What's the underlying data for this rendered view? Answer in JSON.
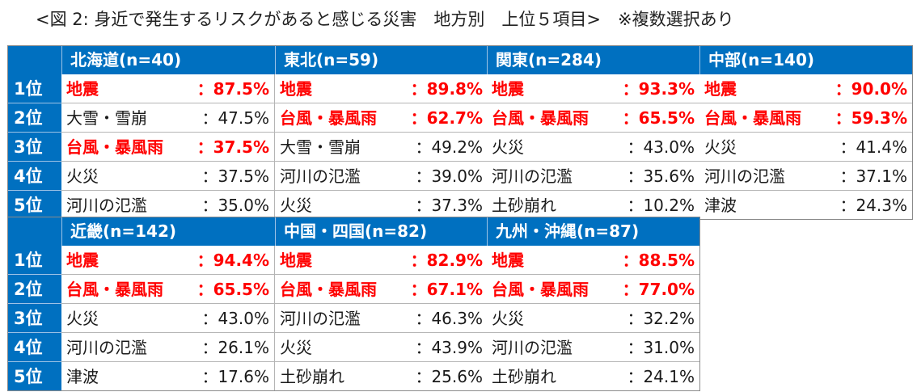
{
  "title": "<図 2: 身近で発生するリスクがあると感じる災害　地方別　上位５項目>　※複数選択あり",
  "ranks": [
    "1位",
    "2位",
    "3位",
    "4位",
    "5位"
  ],
  "colors": {
    "header_bg": "#0070c0",
    "header_text": "#ffffff",
    "highlight": "#ff0000",
    "body_text": "#1a1a1a"
  },
  "chart_data": {
    "type": "table",
    "regions": [
      {
        "header": "北海道(n=40)",
        "items": [
          {
            "name": "地震",
            "value": "：87.5%",
            "highlight": true
          },
          {
            "name": "大雪・雪崩",
            "value": "：47.5%",
            "highlight": false
          },
          {
            "name": "台風・暴風雨",
            "value": "：37.5%",
            "highlight": true
          },
          {
            "name": "火災",
            "value": "：37.5%",
            "highlight": false
          },
          {
            "name": "河川の氾濫",
            "value": "：35.0%",
            "highlight": false
          }
        ]
      },
      {
        "header": "東北(n=59)",
        "items": [
          {
            "name": "地震",
            "value": "：89.8%",
            "highlight": true
          },
          {
            "name": "台風・暴風雨",
            "value": "：62.7%",
            "highlight": true
          },
          {
            "name": "大雪・雪崩",
            "value": "：49.2%",
            "highlight": false
          },
          {
            "name": "河川の氾濫",
            "value": "：39.0%",
            "highlight": false
          },
          {
            "name": "火災",
            "value": "：37.3%",
            "highlight": false
          }
        ]
      },
      {
        "header": "関東(n=284)",
        "items": [
          {
            "name": "地震",
            "value": "：93.3%",
            "highlight": true
          },
          {
            "name": "台風・暴風雨",
            "value": "：65.5%",
            "highlight": true
          },
          {
            "name": "火災",
            "value": "：43.0%",
            "highlight": false
          },
          {
            "name": "河川の氾濫",
            "value": "：35.6%",
            "highlight": false
          },
          {
            "name": "土砂崩れ",
            "value": "：10.2%",
            "highlight": false
          }
        ]
      },
      {
        "header": "中部(n=140)",
        "items": [
          {
            "name": "地震",
            "value": "：90.0%",
            "highlight": true
          },
          {
            "name": "台風・暴風雨",
            "value": "：59.3%",
            "highlight": true
          },
          {
            "name": "火災",
            "value": "：41.4%",
            "highlight": false
          },
          {
            "name": "河川の氾濫",
            "value": "：37.1%",
            "highlight": false
          },
          {
            "name": "津波",
            "value": "：24.3%",
            "highlight": false
          }
        ]
      },
      {
        "header": "近畿(n=142)",
        "items": [
          {
            "name": "地震",
            "value": "：94.4%",
            "highlight": true
          },
          {
            "name": "台風・暴風雨",
            "value": "：65.5%",
            "highlight": true
          },
          {
            "name": "火災",
            "value": "：43.0%",
            "highlight": false
          },
          {
            "name": "河川の氾濫",
            "value": "：26.1%",
            "highlight": false
          },
          {
            "name": "津波",
            "value": "：17.6%",
            "highlight": false
          }
        ]
      },
      {
        "header": "中国・四国(n=82)",
        "items": [
          {
            "name": "地震",
            "value": "：82.9%",
            "highlight": true
          },
          {
            "name": "台風・暴風雨",
            "value": "：67.1%",
            "highlight": true
          },
          {
            "name": "河川の氾濫",
            "value": "：46.3%",
            "highlight": false
          },
          {
            "name": "火災",
            "value": "：43.9%",
            "highlight": false
          },
          {
            "name": "土砂崩れ",
            "value": "：25.6%",
            "highlight": false
          }
        ]
      },
      {
        "header": "九州・沖縄(n=87)",
        "items": [
          {
            "name": "地震",
            "value": "：88.5%",
            "highlight": true
          },
          {
            "name": "台風・暴風雨",
            "value": "：77.0%",
            "highlight": true
          },
          {
            "name": "火災",
            "value": "：32.2%",
            "highlight": false
          },
          {
            "name": "河川の氾濫",
            "value": "：31.0%",
            "highlight": false
          },
          {
            "name": "土砂崩れ",
            "value": "：24.1%",
            "highlight": false
          }
        ]
      }
    ]
  }
}
